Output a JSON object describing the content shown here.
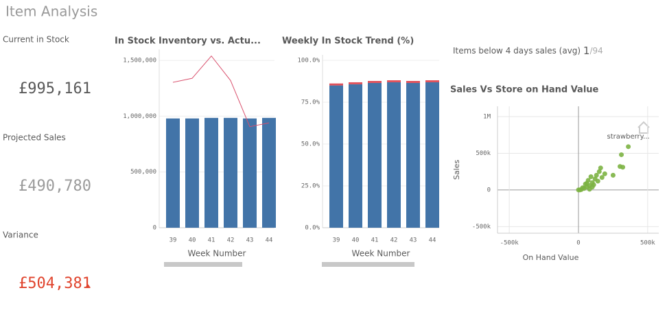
{
  "header": {
    "title": "Item Analysis"
  },
  "kpis": [
    {
      "label": "Current in Stock",
      "value": "£995,161",
      "color": "#595959"
    },
    {
      "label": "Projected Sales",
      "value": "£490,780",
      "color": "#9a9a9a"
    },
    {
      "label": "Variance",
      "value": "£504,381",
      "color": "#e0432c"
    }
  ],
  "items_below": {
    "label": "Items below 4 days sales (avg)",
    "count": "1",
    "total": "/94"
  },
  "chart_data": [
    {
      "type": "bar",
      "title": "In Stock Inventory vs. Actu...",
      "x_label": "Week Number",
      "categories": [
        "39",
        "40",
        "41",
        "42",
        "43",
        "44"
      ],
      "series": [
        {
          "color": "#4274a8",
          "values": [
            980000,
            980000,
            985000,
            985000,
            980000,
            985000
          ]
        },
        {
          "color": "#d9506d",
          "values": [
            1304000,
            1340000,
            1540000,
            1320000,
            906000,
            940000
          ],
          "type": "line"
        }
      ],
      "ylim": [
        0,
        1550000
      ],
      "yticks": [
        0,
        {
          "value": 500000,
          "label": "500,000"
        },
        {
          "value": 1000000,
          "label": "1,000,000"
        },
        {
          "value": 1500000,
          "label": "1,500,000"
        }
      ],
      "grid": true
    },
    {
      "type": "stacked-bar",
      "title": "Weekly In Stock Trend (%)",
      "x_label": "Week Number",
      "categories": [
        "39",
        "40",
        "41",
        "42",
        "43",
        "44"
      ],
      "series": [
        {
          "color": "#4274a8",
          "values": [
            85.0,
            85.7,
            86.5,
            86.9,
            86.5,
            86.9
          ]
        },
        {
          "color": "#e0505a",
          "values": [
            1.2,
            1.2,
            1.2,
            1.2,
            1.2,
            1.2
          ]
        }
      ],
      "ylim": [
        0,
        100
      ],
      "yticks": [
        {
          "value": 0,
          "label": "0.0%"
        },
        {
          "value": 25,
          "label": "25.0%"
        },
        {
          "value": 50,
          "label": "50.0%"
        },
        {
          "value": 75,
          "label": "75.0%"
        },
        {
          "value": 100,
          "label": "100.0%"
        }
      ],
      "grid": true
    },
    {
      "type": "scatter",
      "title": "Sales Vs Store on Hand Value",
      "x_label": "On Hand Value",
      "y_label": "Sales",
      "color": "#7cb342",
      "annotation": "strawberry...",
      "x": [
        0,
        10000,
        20000,
        30000,
        40000,
        50000,
        60000,
        60000,
        70000,
        80000,
        80000,
        90000,
        100000,
        100000,
        110000,
        120000,
        130000,
        140000,
        150000,
        160000,
        170000,
        190000,
        250000,
        300000,
        320000,
        310000,
        360000
      ],
      "y": [
        0,
        0,
        5000,
        30000,
        20000,
        80000,
        40000,
        90000,
        130000,
        60000,
        10000,
        180000,
        100000,
        40000,
        70000,
        150000,
        200000,
        120000,
        250000,
        300000,
        170000,
        220000,
        200000,
        320000,
        310000,
        480000,
        590000
      ],
      "xlim": [
        -585000,
        580000
      ],
      "ylim": [
        -590000,
        1140000
      ],
      "xticks": [
        {
          "value": -500000,
          "label": "-500k"
        },
        0,
        {
          "value": 500000,
          "label": "500k"
        }
      ],
      "yticks": [
        {
          "value": -500000,
          "label": "-500k"
        },
        0,
        {
          "value": 500000,
          "label": "500k"
        },
        {
          "value": 1000000,
          "label": "1M"
        }
      ],
      "grid": true
    }
  ]
}
